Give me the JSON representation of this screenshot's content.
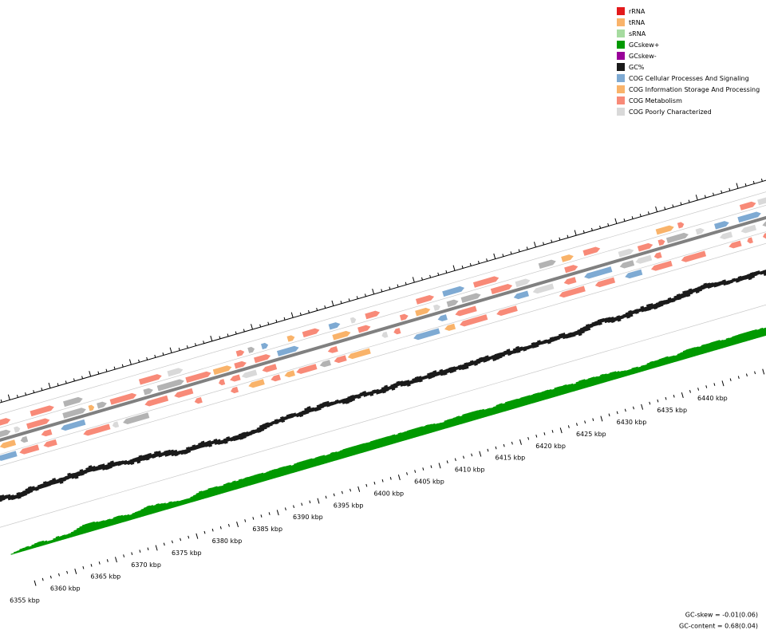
{
  "legend": [
    {
      "label": "rRNA",
      "color": "#e31a1c"
    },
    {
      "label": "tRNA",
      "color": "#f9b36a"
    },
    {
      "label": "sRNA",
      "color": "#a6dba0"
    },
    {
      "label": "GCskew+",
      "color": "#009900"
    },
    {
      "label": "GCskew-",
      "color": "#990099"
    },
    {
      "label": "GC%",
      "color": "#1a1a1a"
    },
    {
      "label": "COG Cellular Processes And Signaling",
      "color": "#7eaad3"
    },
    {
      "label": "COG Information Storage And Processing",
      "color": "#f9b36a"
    },
    {
      "label": "COG Metabolism",
      "color": "#f88a78"
    },
    {
      "label": "COG Poorly Characterized",
      "color": "#d9d9d9"
    }
  ],
  "tick_labels": [
    "6355 kbp",
    "6360 kbp",
    "6365 kbp",
    "6370 kbp",
    "6375 kbp",
    "6380 kbp",
    "6385 kbp",
    "6390 kbp",
    "6395 kbp",
    "6400 kbp",
    "6405 kbp",
    "6410 kbp",
    "6415 kbp",
    "6420 kbp",
    "6425 kbp",
    "6430 kbp",
    "6435 kbp",
    "6440 kbp"
  ],
  "footer": [
    "GC-skew = -0.01(0.06)",
    "GC-content = 0.68(0.04)"
  ]
}
